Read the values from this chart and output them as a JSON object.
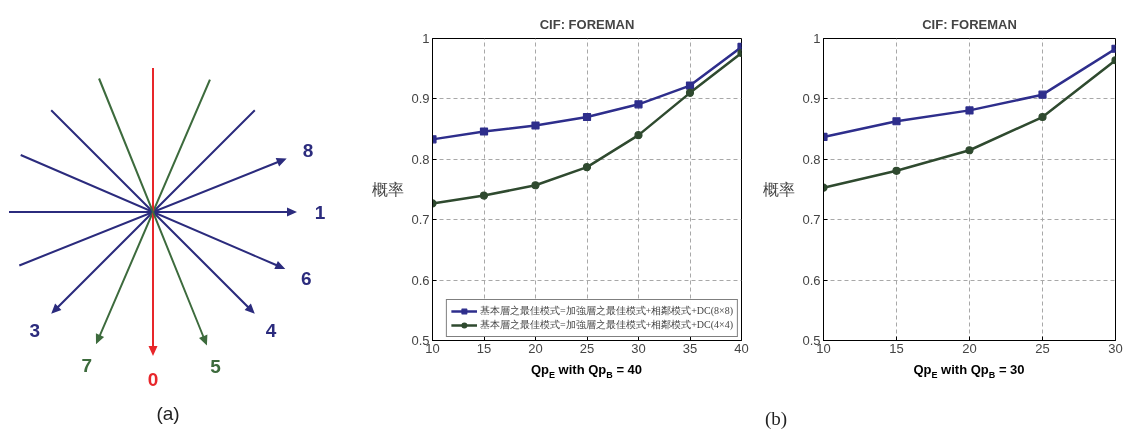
{
  "chart_data": [
    {
      "type": "other",
      "categories": [
        "8",
        "1",
        "6",
        "3",
        "4",
        "7",
        "0",
        "5"
      ],
      "colors": [
        "#2b2b7d",
        "#2b2b7d",
        "#2b2b7d",
        "#2b2b7d",
        "#2b2b7d",
        "#3d6b3d",
        "#e8262a",
        "#3d6b3d"
      ],
      "annotations": [
        "(a)"
      ]
    },
    {
      "type": "line",
      "title": "CIF: FOREMAN",
      "xlabel": "Qp$_{E}$ with Qp$_{B}$ = 40",
      "ylabel": "概率",
      "x": [
        10,
        15,
        20,
        25,
        30,
        35,
        40
      ],
      "xlim": [
        10,
        40
      ],
      "xticks": [
        10,
        15,
        20,
        25,
        30,
        35,
        40
      ],
      "ylim": [
        0.5,
        1
      ],
      "yticks": [
        0.5,
        0.6,
        0.7,
        0.8,
        0.9,
        1
      ],
      "grid": true,
      "legend": "bottom right",
      "line_style": "solid",
      "series": [
        {
          "name": "基本層之最佳模式=加強層之最佳模式+相鄰模式+DC(8×8)",
          "color": "#2e2e8c",
          "marker": "square",
          "values": [
            0.833,
            0.846,
            0.856,
            0.87,
            0.891,
            0.922,
            0.986
          ]
        },
        {
          "name": "基本層之最佳模式=加強層之最佳模式+相鄰模式+DC(4×4)",
          "color": "#2f4a2f",
          "marker": "circle",
          "values": [
            0.727,
            0.74,
            0.757,
            0.787,
            0.84,
            0.91,
            0.976
          ]
        }
      ]
    },
    {
      "type": "line",
      "title": "CIF: FOREMAN",
      "xlabel": "Qp$_{E}$ with Qp$_{B}$ = 30",
      "ylabel": "概率",
      "x": [
        10,
        15,
        20,
        25,
        30
      ],
      "xlim": [
        10,
        30
      ],
      "xticks": [
        10,
        15,
        20,
        25,
        30
      ],
      "ylim": [
        0.5,
        1
      ],
      "yticks": [
        0.5,
        0.6,
        0.7,
        0.8,
        0.9,
        1
      ],
      "grid": true,
      "line_style": "solid",
      "annotations": [
        "(b)"
      ],
      "series": [
        {
          "color": "#2e2e8c",
          "marker": "square",
          "values": [
            0.837,
            0.863,
            0.881,
            0.907,
            0.983
          ]
        },
        {
          "color": "#2f4a2f",
          "marker": "circle",
          "values": [
            0.753,
            0.781,
            0.815,
            0.87,
            0.964
          ]
        }
      ]
    }
  ]
}
